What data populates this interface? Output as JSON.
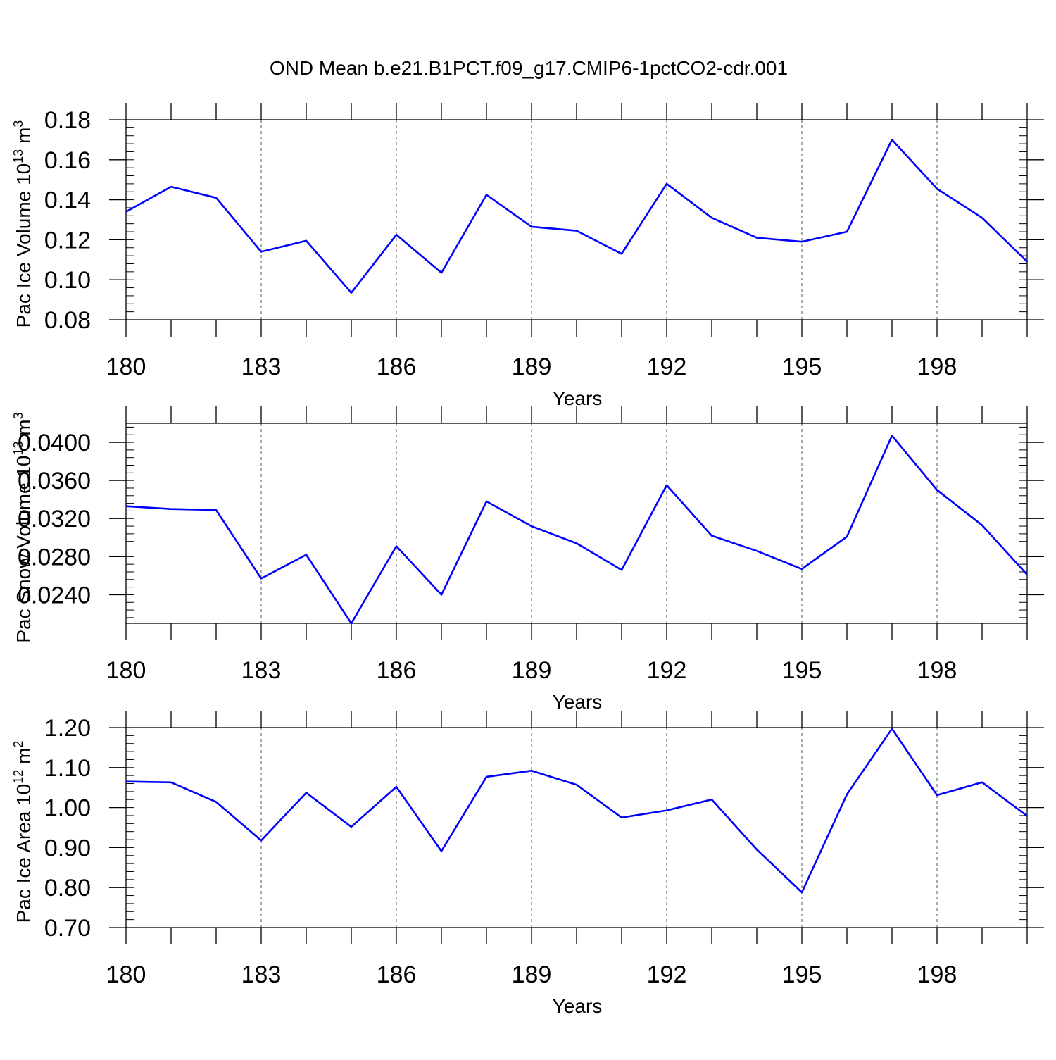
{
  "figure_title": "OND Mean b.e21.B1PCT.f09_g17.CMIP6-1pctCO2-cdr.001",
  "chart_data": [
    {
      "type": "line",
      "title": "OND Mean b.e21.B1PCT.f09_g17.CMIP6-1pctCO2-cdr.001",
      "ylabel": "Pac Ice Volume 10",
      "ylabel_exp": "13",
      "ylabel_unit": " m",
      "ylabel_unit_exp": "3",
      "xlabel": "Years",
      "xlim": [
        180,
        200
      ],
      "ylim": [
        0.08,
        0.18
      ],
      "yticks": [
        0.08,
        0.1,
        0.12,
        0.14,
        0.16,
        0.18
      ],
      "ytick_labels": [
        "0.08",
        "0.10",
        "0.12",
        "0.14",
        "0.16",
        "0.18"
      ],
      "xticks": [
        180,
        183,
        186,
        189,
        192,
        195,
        198
      ],
      "xtick_labels": [
        "180",
        "183",
        "186",
        "189",
        "192",
        "195",
        "198"
      ],
      "grid_x": [
        183,
        186,
        189,
        192,
        195,
        198
      ],
      "series": [
        {
          "name": "Pac Ice Volume",
          "color": "#0000ff",
          "x": [
            180,
            181,
            182,
            183,
            184,
            185,
            186,
            187,
            188,
            189,
            190,
            191,
            192,
            193,
            194,
            195,
            196,
            197,
            198,
            199,
            200
          ],
          "values": [
            0.134,
            0.1465,
            0.141,
            0.114,
            0.1195,
            0.0935,
            0.1225,
            0.1035,
            0.1425,
            0.1265,
            0.1245,
            0.113,
            0.148,
            0.131,
            0.121,
            0.119,
            0.124,
            0.17,
            0.1455,
            0.131,
            0.109
          ]
        }
      ]
    },
    {
      "type": "line",
      "ylabel": "Pac Snow Volume 10",
      "ylabel_exp": "13",
      "ylabel_unit": " m",
      "ylabel_unit_exp": "3",
      "xlabel": "Years",
      "xlim": [
        180,
        200
      ],
      "ylim": [
        0.021,
        0.042
      ],
      "yticks": [
        0.024,
        0.028,
        0.032,
        0.036,
        0.04
      ],
      "ytick_labels": [
        "0.0240",
        "0.0280",
        "0.0320",
        "0.0360",
        "0.0400"
      ],
      "xticks": [
        180,
        183,
        186,
        189,
        192,
        195,
        198
      ],
      "xtick_labels": [
        "180",
        "183",
        "186",
        "189",
        "192",
        "195",
        "198"
      ],
      "grid_x": [
        183,
        186,
        189,
        192,
        195,
        198
      ],
      "series": [
        {
          "name": "Pac Snow Volume",
          "color": "#0000ff",
          "x": [
            180,
            181,
            182,
            183,
            184,
            185,
            186,
            187,
            188,
            189,
            190,
            191,
            192,
            193,
            194,
            195,
            196,
            197,
            198,
            199,
            200
          ],
          "values": [
            0.0333,
            0.033,
            0.0329,
            0.0257,
            0.0282,
            0.021,
            0.0291,
            0.024,
            0.0338,
            0.0312,
            0.0294,
            0.0266,
            0.0355,
            0.0302,
            0.0286,
            0.0267,
            0.0301,
            0.0407,
            0.035,
            0.0313,
            0.0261
          ]
        }
      ]
    },
    {
      "type": "line",
      "ylabel": "Pac Ice Area 10",
      "ylabel_exp": "12",
      "ylabel_unit": " m",
      "ylabel_unit_exp": "2",
      "xlabel": "Years",
      "xlim": [
        180,
        200
      ],
      "ylim": [
        0.7,
        1.2
      ],
      "yticks": [
        0.7,
        0.8,
        0.9,
        1.0,
        1.1,
        1.2
      ],
      "ytick_labels": [
        "0.70",
        "0.80",
        "0.90",
        "1.00",
        "1.10",
        "1.20"
      ],
      "xticks": [
        180,
        183,
        186,
        189,
        192,
        195,
        198
      ],
      "xtick_labels": [
        "180",
        "183",
        "186",
        "189",
        "192",
        "195",
        "198"
      ],
      "grid_x": [
        183,
        186,
        189,
        192,
        195,
        198
      ],
      "series": [
        {
          "name": "Pac Ice Area",
          "color": "#0000ff",
          "x": [
            180,
            181,
            182,
            183,
            184,
            185,
            186,
            187,
            188,
            189,
            190,
            191,
            192,
            193,
            194,
            195,
            196,
            197,
            198,
            199,
            200
          ],
          "values": [
            1.065,
            1.063,
            1.014,
            0.918,
            1.037,
            0.952,
            1.052,
            0.891,
            1.077,
            1.092,
            1.057,
            0.975,
            0.993,
            1.02,
            0.895,
            0.788,
            1.033,
            1.197,
            1.031,
            1.063,
            0.979
          ]
        }
      ]
    }
  ]
}
